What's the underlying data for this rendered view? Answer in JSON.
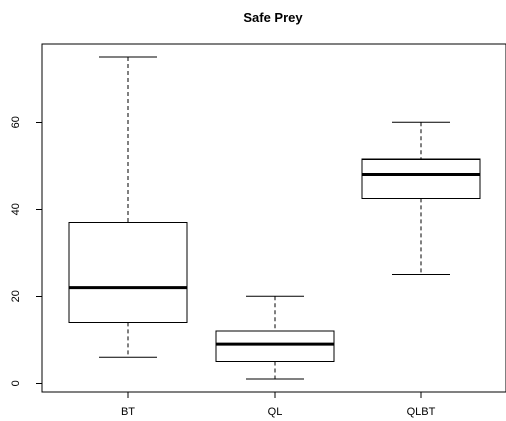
{
  "chart_data": {
    "type": "boxplot",
    "title": "Safe Prey",
    "xlabel": "",
    "ylabel": "",
    "categories": [
      "BT",
      "QL",
      "QLBT"
    ],
    "ylim": [
      -2,
      78
    ],
    "y_ticks": [
      0,
      20,
      40,
      60
    ],
    "series": [
      {
        "values": [
          {
            "category": "BT",
            "min": 6,
            "q1": 14,
            "median": 22,
            "q3": 37,
            "max": 75
          },
          {
            "category": "QL",
            "min": 1,
            "q1": 5,
            "median": 9,
            "q3": 12,
            "max": 20
          },
          {
            "category": "QLBT",
            "min": 25,
            "q1": 42.5,
            "median": 48,
            "q3": 51.5,
            "max": 60
          }
        ]
      }
    ],
    "grid": false,
    "legend": "none"
  }
}
